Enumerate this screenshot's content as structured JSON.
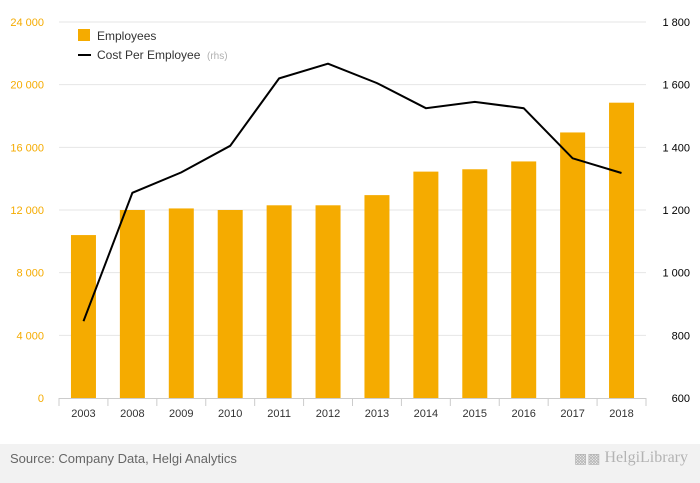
{
  "chart_data": {
    "type": "bar",
    "categories": [
      "2003",
      "2008",
      "2009",
      "2010",
      "2011",
      "2012",
      "2013",
      "2014",
      "2015",
      "2016",
      "2017",
      "2018"
    ],
    "series": [
      {
        "name": "Employees",
        "type": "bar",
        "axis": "left",
        "color": "#f5ab00",
        "values": [
          10400,
          12000,
          12100,
          12000,
          12300,
          12300,
          12950,
          14450,
          14600,
          15100,
          16950,
          18850
        ]
      },
      {
        "name": "Cost Per Employee",
        "type": "line",
        "axis": "right",
        "color": "#000000",
        "values": [
          845,
          1255,
          1320,
          1405,
          1620,
          1667,
          1605,
          1525,
          1545,
          1525,
          1365,
          1318
        ]
      }
    ],
    "y_left": {
      "min": 0,
      "max": 24000,
      "ticks": [
        0,
        4000,
        8000,
        12000,
        16000,
        20000,
        24000
      ],
      "tick_labels": [
        "0",
        "4 000",
        "8 000",
        "12 000",
        "16 000",
        "20 000",
        "24 000"
      ],
      "color": "#f5ab00"
    },
    "y_right": {
      "min": 600,
      "max": 1800,
      "ticks": [
        600,
        800,
        1000,
        1200,
        1400,
        1600,
        1800
      ],
      "tick_labels": [
        "600",
        "800",
        "1 000",
        "1 200",
        "1 400",
        "1 600",
        "1 800"
      ],
      "color": "#000000"
    },
    "legend": {
      "placement": "top-left",
      "items": [
        {
          "label": "Employees",
          "suffix": "",
          "marker": "square",
          "color": "#f5ab00"
        },
        {
          "label": "Cost Per Employee",
          "suffix": "(rhs)",
          "marker": "line",
          "color": "#000000"
        }
      ]
    },
    "grid": true
  },
  "footer": {
    "source": "Source: Company Data, Helgi Analytics",
    "brand_name": "HelgiLibrary",
    "brand_logo_icon": "helgi-logo-icon"
  }
}
